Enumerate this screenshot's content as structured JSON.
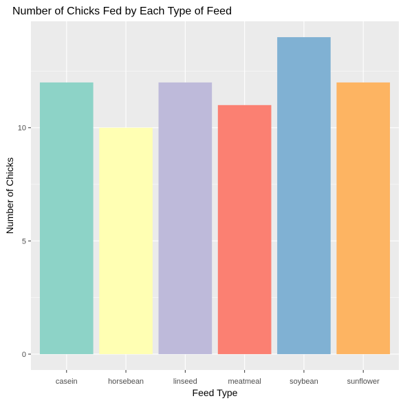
{
  "chart_data": {
    "type": "bar",
    "title": "Number of Chicks Fed by Each Type of Feed",
    "xlabel": "Feed Type",
    "ylabel": "Number of Chicks",
    "categories": [
      "casein",
      "horsebean",
      "linseed",
      "meatmeal",
      "soybean",
      "sunflower"
    ],
    "values": [
      12,
      10,
      12,
      11,
      14,
      12
    ],
    "colors": [
      "#8DD3C7",
      "#FFFFB3",
      "#BEBADA",
      "#FB8072",
      "#80B1D3",
      "#FDB462"
    ],
    "yticks": [
      0,
      5,
      10
    ],
    "ylim": [
      -0.7,
      14.7
    ],
    "grid": true,
    "panel_background": "#EBEBEB",
    "legend": "none"
  }
}
